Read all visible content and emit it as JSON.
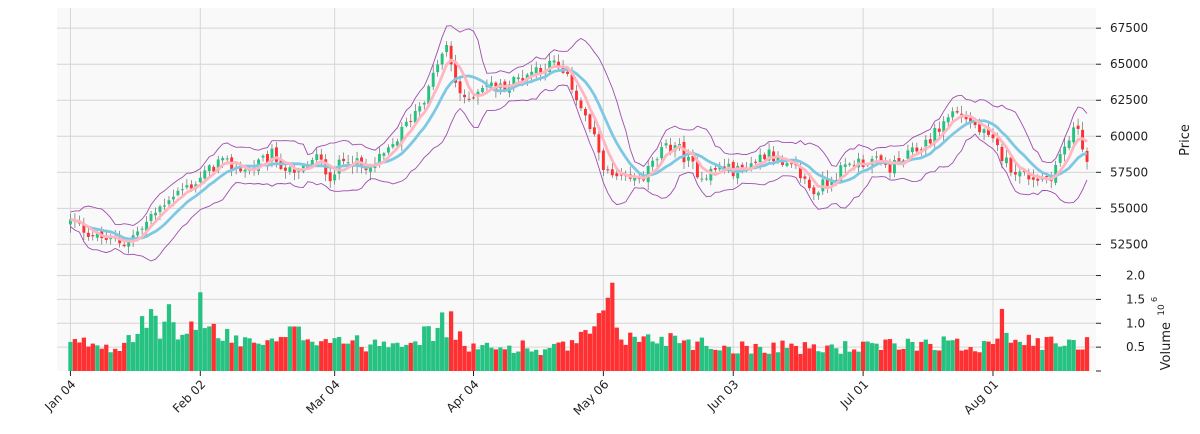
{
  "chart_data": {
    "type": "candlestick",
    "panels": {
      "price": {
        "ylabel": "Price",
        "ylim": [
          51000,
          68900
        ],
        "yticks": [
          52500,
          55000,
          57500,
          60000,
          62500,
          65000,
          67500
        ],
        "ytick_labels": [
          "52500",
          "55000",
          "57500",
          "60000",
          "62500",
          "65000",
          "67500"
        ]
      },
      "volume": {
        "ylabel": "Volume",
        "ylabel_exponent": "6",
        "ylim": [
          0,
          2.2
        ],
        "yticks": [
          0.5,
          1.0,
          1.5,
          2.0
        ],
        "ytick_labels": [
          "0.5",
          "1.0",
          "1.5",
          "2.0"
        ]
      }
    },
    "x_range": [
      -3,
      229
    ],
    "xticks": [
      {
        "index": 0,
        "label": "Jan 04"
      },
      {
        "index": 29,
        "label": "Feb 02"
      },
      {
        "index": 59,
        "label": "Mar 04"
      },
      {
        "index": 90,
        "label": "Apr 04"
      },
      {
        "index": 119,
        "label": "May 06"
      },
      {
        "index": 148,
        "label": "Jun 03"
      },
      {
        "index": 177,
        "label": "Jul 01"
      },
      {
        "index": 206,
        "label": "Aug 01"
      }
    ],
    "grid": true,
    "colors": {
      "up": "#26c281",
      "down": "#fe3032",
      "ma_fast": "#7ec8e3",
      "ma_slow": "#ffb6c1",
      "bollinger": "#a04cb0",
      "volume_up": "#26c281",
      "volume_down": "#fe3032",
      "background": "#f9f9f9"
    },
    "anchors_close": [
      [
        0,
        54100
      ],
      [
        6,
        53000
      ],
      [
        12,
        52600
      ],
      [
        16,
        53600
      ],
      [
        22,
        55800
      ],
      [
        28,
        56800
      ],
      [
        33,
        58200
      ],
      [
        40,
        57600
      ],
      [
        45,
        58700
      ],
      [
        50,
        57200
      ],
      [
        55,
        58500
      ],
      [
        58,
        57300
      ],
      [
        62,
        58600
      ],
      [
        66,
        57500
      ],
      [
        71,
        58900
      ],
      [
        76,
        61300
      ],
      [
        80,
        63200
      ],
      [
        82,
        65100
      ],
      [
        84,
        66100
      ],
      [
        86,
        63800
      ],
      [
        88,
        62300
      ],
      [
        92,
        63600
      ],
      [
        96,
        63400
      ],
      [
        100,
        64000
      ],
      [
        104,
        64700
      ],
      [
        108,
        65000
      ],
      [
        112,
        63500
      ],
      [
        116,
        60500
      ],
      [
        120,
        57300
      ],
      [
        124,
        56800
      ],
      [
        128,
        57200
      ],
      [
        132,
        58900
      ],
      [
        135,
        59500
      ],
      [
        138,
        58200
      ],
      [
        141,
        57300
      ],
      [
        145,
        57800
      ],
      [
        149,
        57600
      ],
      [
        153,
        58300
      ],
      [
        156,
        59100
      ],
      [
        159,
        57800
      ],
      [
        162,
        57700
      ],
      [
        166,
        56100
      ],
      [
        171,
        57400
      ],
      [
        175,
        58200
      ],
      [
        179,
        58300
      ],
      [
        183,
        57800
      ],
      [
        187,
        58600
      ],
      [
        190,
        59300
      ],
      [
        193,
        60200
      ],
      [
        197,
        61700
      ],
      [
        200,
        61300
      ],
      [
        203,
        60400
      ],
      [
        206,
        59500
      ],
      [
        209,
        58200
      ],
      [
        212,
        57400
      ],
      [
        216,
        57100
      ],
      [
        219,
        57300
      ],
      [
        222,
        59300
      ],
      [
        225,
        60700
      ],
      [
        227,
        58200
      ]
    ],
    "anchors_volume": [
      [
        0,
        0.55
      ],
      [
        5,
        0.6
      ],
      [
        10,
        0.5
      ],
      [
        14,
        0.85
      ],
      [
        18,
        1.0
      ],
      [
        22,
        0.8
      ],
      [
        26,
        0.75
      ],
      [
        29,
        1.3
      ],
      [
        33,
        0.7
      ],
      [
        40,
        0.65
      ],
      [
        45,
        0.55
      ],
      [
        50,
        0.8
      ],
      [
        55,
        0.7
      ],
      [
        60,
        0.7
      ],
      [
        65,
        0.55
      ],
      [
        70,
        0.65
      ],
      [
        75,
        0.7
      ],
      [
        80,
        0.75
      ],
      [
        83,
        1.0
      ],
      [
        86,
        0.7
      ],
      [
        90,
        0.5
      ],
      [
        95,
        0.45
      ],
      [
        100,
        0.55
      ],
      [
        105,
        0.4
      ],
      [
        110,
        0.5
      ],
      [
        114,
        0.65
      ],
      [
        117,
        0.85
      ],
      [
        120,
        1.2
      ],
      [
        124,
        0.7
      ],
      [
        128,
        0.65
      ],
      [
        132,
        0.7
      ],
      [
        136,
        0.7
      ],
      [
        140,
        0.6
      ],
      [
        145,
        0.5
      ],
      [
        150,
        0.5
      ],
      [
        155,
        0.5
      ],
      [
        160,
        0.55
      ],
      [
        165,
        0.45
      ],
      [
        170,
        0.5
      ],
      [
        175,
        0.5
      ],
      [
        180,
        0.5
      ],
      [
        185,
        0.55
      ],
      [
        190,
        0.6
      ],
      [
        195,
        0.6
      ],
      [
        200,
        0.5
      ],
      [
        205,
        0.6
      ],
      [
        208,
        0.9
      ],
      [
        211,
        0.75
      ],
      [
        215,
        0.55
      ],
      [
        220,
        0.6
      ],
      [
        225,
        0.5
      ],
      [
        227,
        0.7
      ]
    ]
  }
}
